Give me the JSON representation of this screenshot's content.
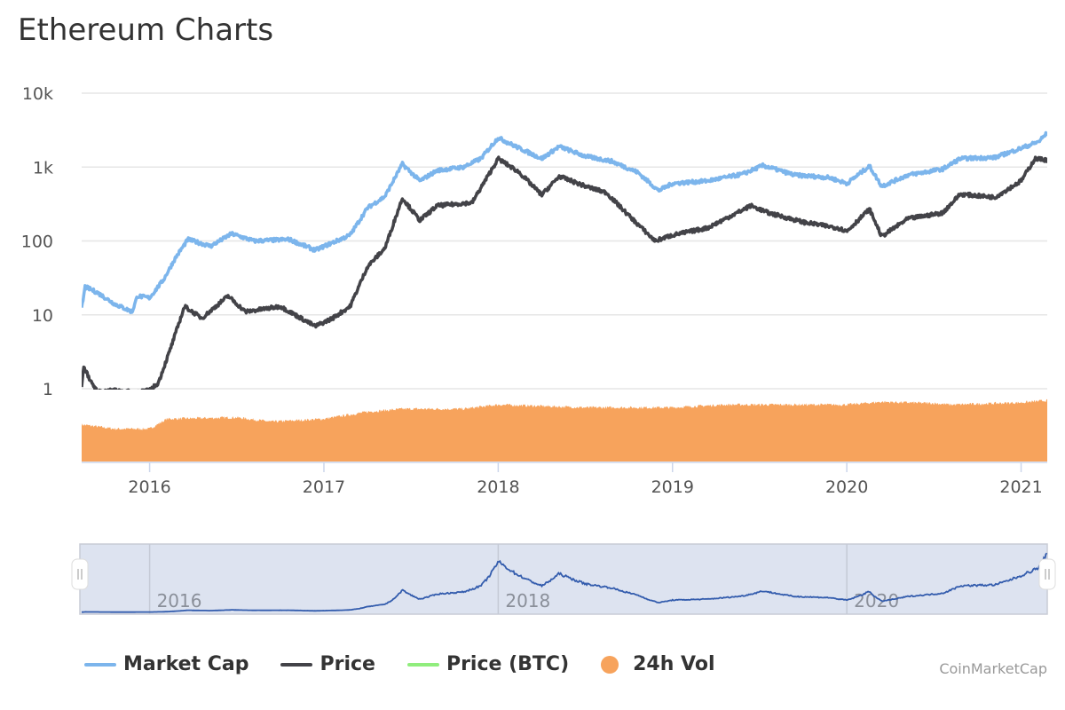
{
  "chart_data": {
    "type": "line",
    "title": "Ethereum Charts",
    "xlabel": "",
    "ylabel": "",
    "y_scale": "log",
    "ylim": [
      1,
      10000
    ],
    "xlim": [
      2015.61,
      2021.15
    ],
    "y_ticks": [
      "10k",
      "1k",
      "100",
      "10",
      "1"
    ],
    "y_tick_values": [
      10000,
      1000,
      100,
      10,
      1
    ],
    "x_ticks": [
      "2016",
      "2017",
      "2018",
      "2019",
      "2020",
      "2021"
    ],
    "x_tick_values": [
      2016,
      2017,
      2018,
      2019,
      2020,
      2021
    ],
    "grid": true,
    "legend_position": "bottom-left",
    "series": [
      {
        "name": "Market Cap",
        "color": "#7cb5ec",
        "points": [
          [
            2015.61,
            12
          ],
          [
            2015.63,
            24
          ],
          [
            2015.7,
            20
          ],
          [
            2015.8,
            14
          ],
          [
            2015.9,
            11
          ],
          [
            2015.93,
            18
          ],
          [
            2016.0,
            17
          ],
          [
            2016.08,
            30
          ],
          [
            2016.15,
            60
          ],
          [
            2016.22,
            105
          ],
          [
            2016.35,
            85
          ],
          [
            2016.47,
            125
          ],
          [
            2016.6,
            100
          ],
          [
            2016.8,
            105
          ],
          [
            2016.95,
            75
          ],
          [
            2017.05,
            95
          ],
          [
            2017.15,
            120
          ],
          [
            2017.25,
            280
          ],
          [
            2017.35,
            400
          ],
          [
            2017.45,
            1100
          ],
          [
            2017.55,
            650
          ],
          [
            2017.65,
            900
          ],
          [
            2017.8,
            1000
          ],
          [
            2017.9,
            1300
          ],
          [
            2018.0,
            2500
          ],
          [
            2018.1,
            1900
          ],
          [
            2018.25,
            1300
          ],
          [
            2018.35,
            1900
          ],
          [
            2018.5,
            1400
          ],
          [
            2018.65,
            1200
          ],
          [
            2018.8,
            850
          ],
          [
            2018.92,
            480
          ],
          [
            2019.0,
            600
          ],
          [
            2019.2,
            650
          ],
          [
            2019.4,
            800
          ],
          [
            2019.52,
            1050
          ],
          [
            2019.7,
            780
          ],
          [
            2019.9,
            720
          ],
          [
            2020.0,
            600
          ],
          [
            2020.13,
            1030
          ],
          [
            2020.2,
            550
          ],
          [
            2020.35,
            780
          ],
          [
            2020.55,
            940
          ],
          [
            2020.65,
            1300
          ],
          [
            2020.85,
            1350
          ],
          [
            2021.0,
            1800
          ],
          [
            2021.1,
            2200
          ],
          [
            2021.15,
            2900
          ]
        ]
      },
      {
        "name": "Price",
        "color": "#434348",
        "points": [
          [
            2015.61,
            1.0
          ],
          [
            2015.62,
            2.0
          ],
          [
            2015.66,
            1.3
          ],
          [
            2015.7,
            0.9
          ],
          [
            2015.8,
            0.95
          ],
          [
            2015.9,
            0.9
          ],
          [
            2016.0,
            0.95
          ],
          [
            2016.05,
            1.2
          ],
          [
            2016.12,
            3.5
          ],
          [
            2016.2,
            13
          ],
          [
            2016.3,
            9
          ],
          [
            2016.45,
            18
          ],
          [
            2016.55,
            11
          ],
          [
            2016.75,
            13
          ],
          [
            2016.95,
            7
          ],
          [
            2017.05,
            9
          ],
          [
            2017.15,
            13
          ],
          [
            2017.25,
            45
          ],
          [
            2017.35,
            80
          ],
          [
            2017.45,
            380
          ],
          [
            2017.55,
            190
          ],
          [
            2017.65,
            300
          ],
          [
            2017.85,
            330
          ],
          [
            2018.0,
            1300
          ],
          [
            2018.12,
            850
          ],
          [
            2018.25,
            420
          ],
          [
            2018.35,
            750
          ],
          [
            2018.5,
            550
          ],
          [
            2018.62,
            450
          ],
          [
            2018.75,
            220
          ],
          [
            2018.9,
            100
          ],
          [
            2019.0,
            120
          ],
          [
            2019.2,
            150
          ],
          [
            2019.45,
            300
          ],
          [
            2019.55,
            240
          ],
          [
            2019.75,
            180
          ],
          [
            2019.95,
            150
          ],
          [
            2020.0,
            135
          ],
          [
            2020.13,
            270
          ],
          [
            2020.2,
            115
          ],
          [
            2020.35,
            200
          ],
          [
            2020.55,
            240
          ],
          [
            2020.65,
            430
          ],
          [
            2020.85,
            390
          ],
          [
            2021.0,
            650
          ],
          [
            2021.08,
            1300
          ],
          [
            2021.15,
            1250
          ]
        ]
      },
      {
        "name": "Price (BTC)",
        "color": "#90ed7d",
        "points": []
      },
      {
        "name": "24h Vol",
        "color": "#f7a35c",
        "type": "column",
        "relative_points": [
          [
            2015.61,
            52
          ],
          [
            2015.8,
            46
          ],
          [
            2016.0,
            46
          ],
          [
            2016.1,
            60
          ],
          [
            2016.5,
            62
          ],
          [
            2016.7,
            56
          ],
          [
            2017.0,
            60
          ],
          [
            2017.25,
            70
          ],
          [
            2017.45,
            74
          ],
          [
            2017.8,
            74
          ],
          [
            2018.0,
            80
          ],
          [
            2018.5,
            76
          ],
          [
            2019.0,
            76
          ],
          [
            2019.3,
            80
          ],
          [
            2020.0,
            80
          ],
          [
            2020.2,
            84
          ],
          [
            2020.5,
            82
          ],
          [
            2020.6,
            80
          ],
          [
            2021.0,
            83
          ],
          [
            2021.15,
            86
          ]
        ]
      }
    ],
    "navigator": {
      "series": "Market Cap",
      "labels": [
        "2016",
        "2018",
        "2020"
      ],
      "label_values": [
        2016,
        2018,
        2020
      ],
      "selected_range": [
        2015.61,
        2021.15
      ]
    }
  },
  "legend": [
    "Market Cap",
    "Price",
    "Price (BTC)",
    "24h Vol"
  ],
  "credits": "CoinMarketCap"
}
